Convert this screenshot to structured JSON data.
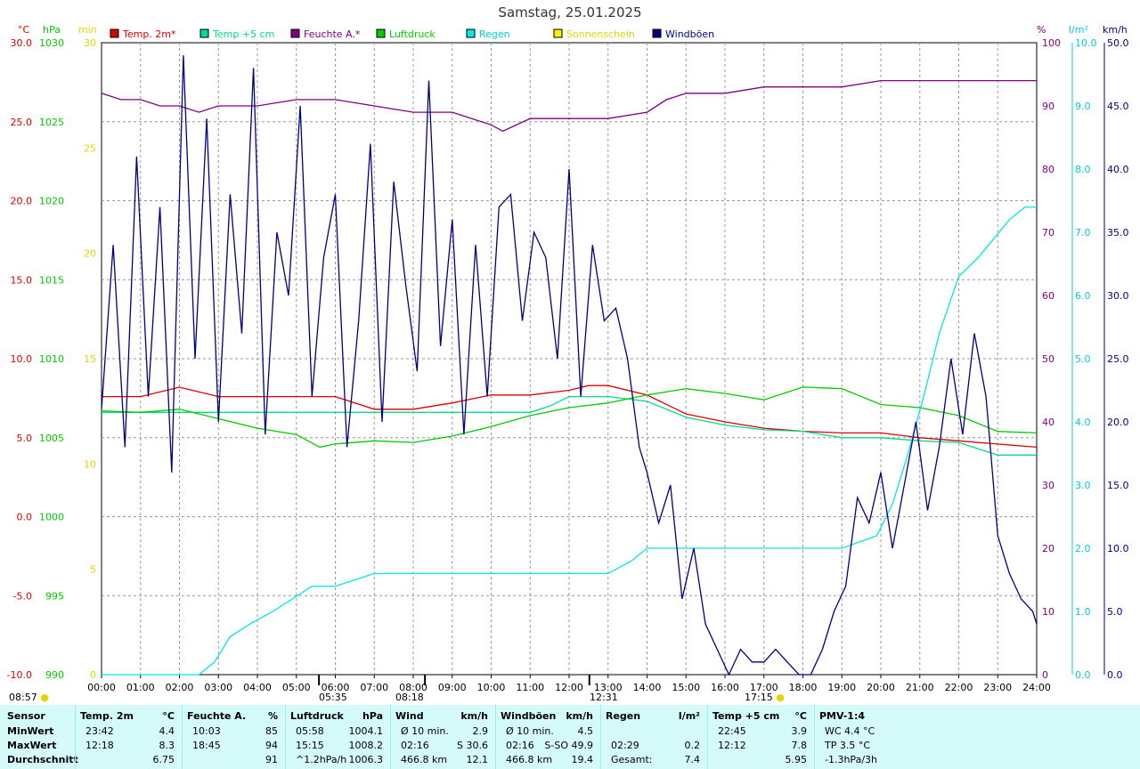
{
  "title": "Samstag, 25.01.2025",
  "axis_units": {
    "temp": "°C",
    "pressure": "hPa",
    "sun": "min",
    "humidity": "%",
    "rain": "l/m²",
    "wind": "km/h"
  },
  "legend": [
    {
      "label": "Temp. 2m*",
      "color": "#dd0000"
    },
    {
      "label": "Temp +5 cm",
      "color": "#00dd88"
    },
    {
      "label": "Feuchte A.*",
      "color": "#800080"
    },
    {
      "label": "Luftdruck",
      "color": "#00cc00"
    },
    {
      "label": "Regen",
      "color": "#00e8e8"
    },
    {
      "label": "Sonnenschein",
      "color": "#ffee00"
    },
    {
      "label": "Windböen",
      "color": "#000080"
    }
  ],
  "sun_markers": {
    "sunrise_time": "08:57",
    "sunset_time": "17:15"
  },
  "time_markers": [
    "05:35",
    "08:18",
    "12:31"
  ],
  "chart_data": {
    "type": "line",
    "x_ticks": [
      "00:00",
      "01:00",
      "02:00",
      "03:00",
      "04:00",
      "05:00",
      "06:00",
      "07:00",
      "08:00",
      "09:00",
      "10:00",
      "11:00",
      "12:00",
      "13:00",
      "14:00",
      "15:00",
      "16:00",
      "17:00",
      "18:00",
      "19:00",
      "20:00",
      "21:00",
      "22:00",
      "23:00",
      "24:00"
    ],
    "axes": {
      "temp_c": {
        "range": [
          -10.0,
          30.0
        ],
        "ticks": [
          "30.0",
          "25.0",
          "20.0",
          "15.0",
          "10.0",
          "5.0",
          "0.0",
          "-5.0",
          "-10.0"
        ]
      },
      "pressure_hpa": {
        "range": [
          990,
          1030
        ],
        "ticks": [
          "1030",
          "1025",
          "1020",
          "1015",
          "1010",
          "1005",
          "1000",
          "995",
          "990"
        ]
      },
      "sun_min": {
        "range": [
          0,
          30
        ],
        "ticks": [
          "30",
          "25",
          "20",
          "15",
          "10",
          "5",
          "0"
        ]
      },
      "humidity_pct": {
        "range": [
          0,
          100
        ],
        "ticks": [
          "100",
          "90",
          "80",
          "70",
          "60",
          "50",
          "40",
          "30",
          "20",
          "10",
          "0"
        ]
      },
      "rain_lm2": {
        "range": [
          0.0,
          10.0
        ],
        "ticks": [
          "10.0",
          "9.0",
          "8.0",
          "7.0",
          "6.0",
          "5.0",
          "4.0",
          "3.0",
          "2.0",
          "1.0",
          "0.0"
        ]
      },
      "wind_kmh": {
        "range": [
          0.0,
          50.0
        ],
        "ticks": [
          "50.0",
          "45.0",
          "40.0",
          "35.0",
          "30.0",
          "25.0",
          "20.0",
          "15.0",
          "10.0",
          "5.0",
          "0.0"
        ]
      }
    },
    "series": [
      {
        "name": "Temp. 2m*",
        "axis": "temp_c",
        "color": "#dd0000",
        "x": [
          0,
          1,
          2,
          3,
          4,
          5,
          6,
          7,
          8,
          9,
          10,
          11,
          12,
          12.5,
          13,
          14,
          15,
          16,
          17,
          18,
          19,
          20,
          21,
          22,
          23,
          24
        ],
        "values": [
          7.6,
          7.6,
          8.2,
          7.6,
          7.6,
          7.6,
          7.6,
          6.8,
          6.8,
          7.2,
          7.7,
          7.7,
          8.0,
          8.3,
          8.3,
          7.7,
          6.5,
          6.0,
          5.6,
          5.4,
          5.3,
          5.3,
          5.0,
          4.8,
          4.6,
          4.4
        ]
      },
      {
        "name": "Temp +5 cm",
        "axis": "temp_c",
        "color": "#00dd88",
        "x": [
          0,
          3,
          6,
          7,
          8,
          9,
          10,
          11,
          11.5,
          12,
          13,
          14,
          15,
          16,
          17,
          18,
          19,
          20,
          21,
          22,
          22.5,
          23,
          24
        ],
        "values": [
          6.6,
          6.6,
          6.6,
          6.6,
          6.6,
          6.6,
          6.6,
          6.6,
          7.0,
          7.6,
          7.6,
          7.3,
          6.3,
          5.8,
          5.5,
          5.4,
          5.0,
          5.0,
          4.8,
          4.7,
          4.3,
          3.9,
          3.9
        ]
      },
      {
        "name": "Feuchte A.*",
        "axis": "humidity_pct",
        "color": "#800080",
        "x": [
          0,
          0.5,
          1,
          1.5,
          2,
          2.5,
          3,
          4,
          5,
          6,
          7,
          8,
          9,
          9.5,
          10,
          10.3,
          11,
          12,
          13,
          14,
          14.5,
          15,
          16,
          17,
          18,
          19,
          20,
          21,
          22,
          23,
          24
        ],
        "values": [
          92,
          91,
          91,
          90,
          90,
          89,
          90,
          90,
          91,
          91,
          90,
          89,
          89,
          88,
          87,
          86,
          88,
          88,
          88,
          89,
          91,
          92,
          92,
          93,
          93,
          93,
          94,
          94,
          94,
          94,
          94
        ]
      },
      {
        "name": "Luftdruck",
        "axis": "pressure_hpa",
        "color": "#00cc00",
        "x": [
          0,
          1,
          2,
          3,
          4,
          5,
          5.6,
          6,
          7,
          8,
          9,
          10,
          11,
          12,
          13,
          14,
          15,
          16,
          17,
          18,
          19,
          20,
          21,
          22,
          23,
          24
        ],
        "values": [
          1006.7,
          1006.6,
          1006.8,
          1006.2,
          1005.6,
          1005.2,
          1004.4,
          1004.6,
          1004.8,
          1004.7,
          1005.1,
          1005.7,
          1006.4,
          1006.9,
          1007.2,
          1007.7,
          1008.1,
          1007.8,
          1007.4,
          1008.2,
          1008.1,
          1007.1,
          1006.9,
          1006.4,
          1005.4,
          1005.3
        ]
      },
      {
        "name": "Regen",
        "axis": "rain_lm2",
        "color": "#00e8e8",
        "x": [
          0,
          2.5,
          2.9,
          3.3,
          3.8,
          4.4,
          4.9,
          5.4,
          6.0,
          6.5,
          7.0,
          13.0,
          13.6,
          14.0,
          19.0,
          19.9,
          20.3,
          20.7,
          21.1,
          21.5,
          22.0,
          22.5,
          22.9,
          23.3,
          23.7,
          24
        ],
        "values": [
          0,
          0,
          0.2,
          0.6,
          0.8,
          1.0,
          1.2,
          1.4,
          1.4,
          1.5,
          1.6,
          1.6,
          1.8,
          2.0,
          2.0,
          2.2,
          2.7,
          3.5,
          4.4,
          5.4,
          6.3,
          6.6,
          6.9,
          7.2,
          7.4,
          7.4
        ]
      },
      {
        "name": "Windböen",
        "axis": "wind_kmh",
        "color": "#000080",
        "x": [
          0,
          0.3,
          0.6,
          0.9,
          1.2,
          1.5,
          1.8,
          2.1,
          2.4,
          2.7,
          3.0,
          3.3,
          3.6,
          3.9,
          4.2,
          4.5,
          4.8,
          5.1,
          5.4,
          5.7,
          6.0,
          6.3,
          6.6,
          6.9,
          7.2,
          7.5,
          7.8,
          8.1,
          8.4,
          8.7,
          9.0,
          9.3,
          9.6,
          9.9,
          10.2,
          10.5,
          10.8,
          11.1,
          11.4,
          11.7,
          12.0,
          12.3,
          12.6,
          12.9,
          13.2,
          13.5,
          13.8,
          14.0,
          14.3,
          14.6,
          14.9,
          15.2,
          15.5,
          15.8,
          16.1,
          16.4,
          16.7,
          17.0,
          17.3,
          17.6,
          17.9,
          18.2,
          18.5,
          18.8,
          19.1,
          19.4,
          19.7,
          20.0,
          20.3,
          20.6,
          20.9,
          21.2,
          21.5,
          21.8,
          22.1,
          22.4,
          22.7,
          23.0,
          23.3,
          23.6,
          23.9,
          24.0
        ],
        "values": [
          21,
          34,
          18,
          41,
          22,
          37,
          16,
          49,
          25,
          44,
          20,
          38,
          27,
          48,
          19,
          35,
          30,
          45,
          22,
          33,
          38,
          18,
          28,
          42,
          20,
          39,
          31,
          24,
          47,
          26,
          36,
          19,
          34,
          22,
          37,
          38,
          28,
          35,
          33,
          25,
          40,
          22,
          34,
          28,
          29,
          25,
          18,
          16,
          12,
          15,
          6,
          10,
          4,
          2,
          0,
          2,
          1,
          1,
          2,
          1,
          0,
          0,
          2,
          5,
          7,
          14,
          12,
          16,
          10,
          15,
          20,
          13,
          18,
          25,
          19,
          27,
          22,
          11,
          8,
          6,
          5,
          4
        ]
      }
    ]
  },
  "stats": {
    "row_labels": [
      "Sensor",
      "MinWert",
      "MaxWert",
      "Durchschnitt"
    ],
    "columns": [
      {
        "name": "Temp. 2m",
        "unit": "°C",
        "rows": [
          [
            "23:42",
            "4.4"
          ],
          [
            "12:18",
            "8.3"
          ],
          [
            "",
            "6.75"
          ]
        ]
      },
      {
        "name": "Feuchte A.",
        "unit": "%",
        "rows": [
          [
            "10:03",
            "85"
          ],
          [
            "18:45",
            "94"
          ],
          [
            "",
            "91"
          ]
        ]
      },
      {
        "name": "Luftdruck",
        "unit": "hPa",
        "rows": [
          [
            "05:58",
            "1004.1"
          ],
          [
            "15:15",
            "1008.2"
          ],
          [
            "^1.2hPa/h",
            "1006.3"
          ]
        ]
      },
      {
        "name": "Wind",
        "unit": "km/h",
        "rows": [
          [
            "Ø 10 min.",
            "2.9"
          ],
          [
            "02:16",
            "S 30.6"
          ],
          [
            "466.8 km",
            "12.1"
          ]
        ]
      },
      {
        "name": "Windböen",
        "unit": "km/h",
        "rows": [
          [
            "Ø 10 min.",
            "4.5"
          ],
          [
            "02:16",
            "S-SO 49.9"
          ],
          [
            "466.8 km",
            "19.4"
          ]
        ]
      },
      {
        "name": "Regen",
        "unit": "l/m²",
        "rows": [
          [
            "",
            ""
          ],
          [
            "02:29",
            "0.2"
          ],
          [
            "Gesamt:",
            "7.4"
          ]
        ]
      },
      {
        "name": "Temp +5 cm",
        "unit": "°C",
        "rows": [
          [
            "22:45",
            "3.9"
          ],
          [
            "12:12",
            "7.8"
          ],
          [
            "",
            "5.95"
          ]
        ]
      },
      {
        "name": "PMV-1:4",
        "unit": "",
        "rows": [
          [
            "WC 4.4 °C",
            ""
          ],
          [
            "TP 3.5 °C",
            ""
          ],
          [
            "-1.3hPa/3h",
            ""
          ]
        ]
      }
    ]
  }
}
